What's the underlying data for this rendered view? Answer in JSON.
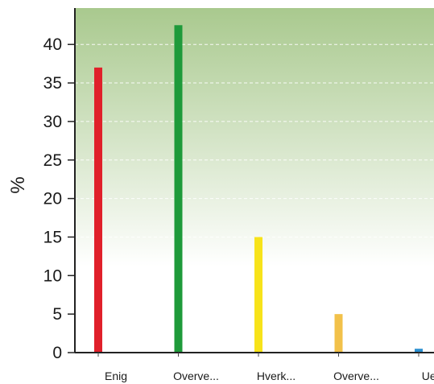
{
  "chart_data": {
    "type": "bar",
    "title": "",
    "xlabel": "",
    "ylabel": "%",
    "categories": [
      "Enig",
      "Overve...",
      "Hverk...",
      "Overve...",
      "Uenig"
    ],
    "values": [
      37,
      42.5,
      15,
      5,
      0.5
    ],
    "colors": [
      "#e0202a",
      "#1e9a3a",
      "#f7e31a",
      "#f2c14a",
      "#2a8fd0"
    ],
    "ylim": [
      0,
      44
    ],
    "yticks": [
      "0",
      "5",
      "10",
      "15",
      "20",
      "25",
      "30",
      "35",
      "40"
    ],
    "grid": true,
    "background": {
      "top": "#a9c98e",
      "bottom": "#ffffff"
    }
  }
}
